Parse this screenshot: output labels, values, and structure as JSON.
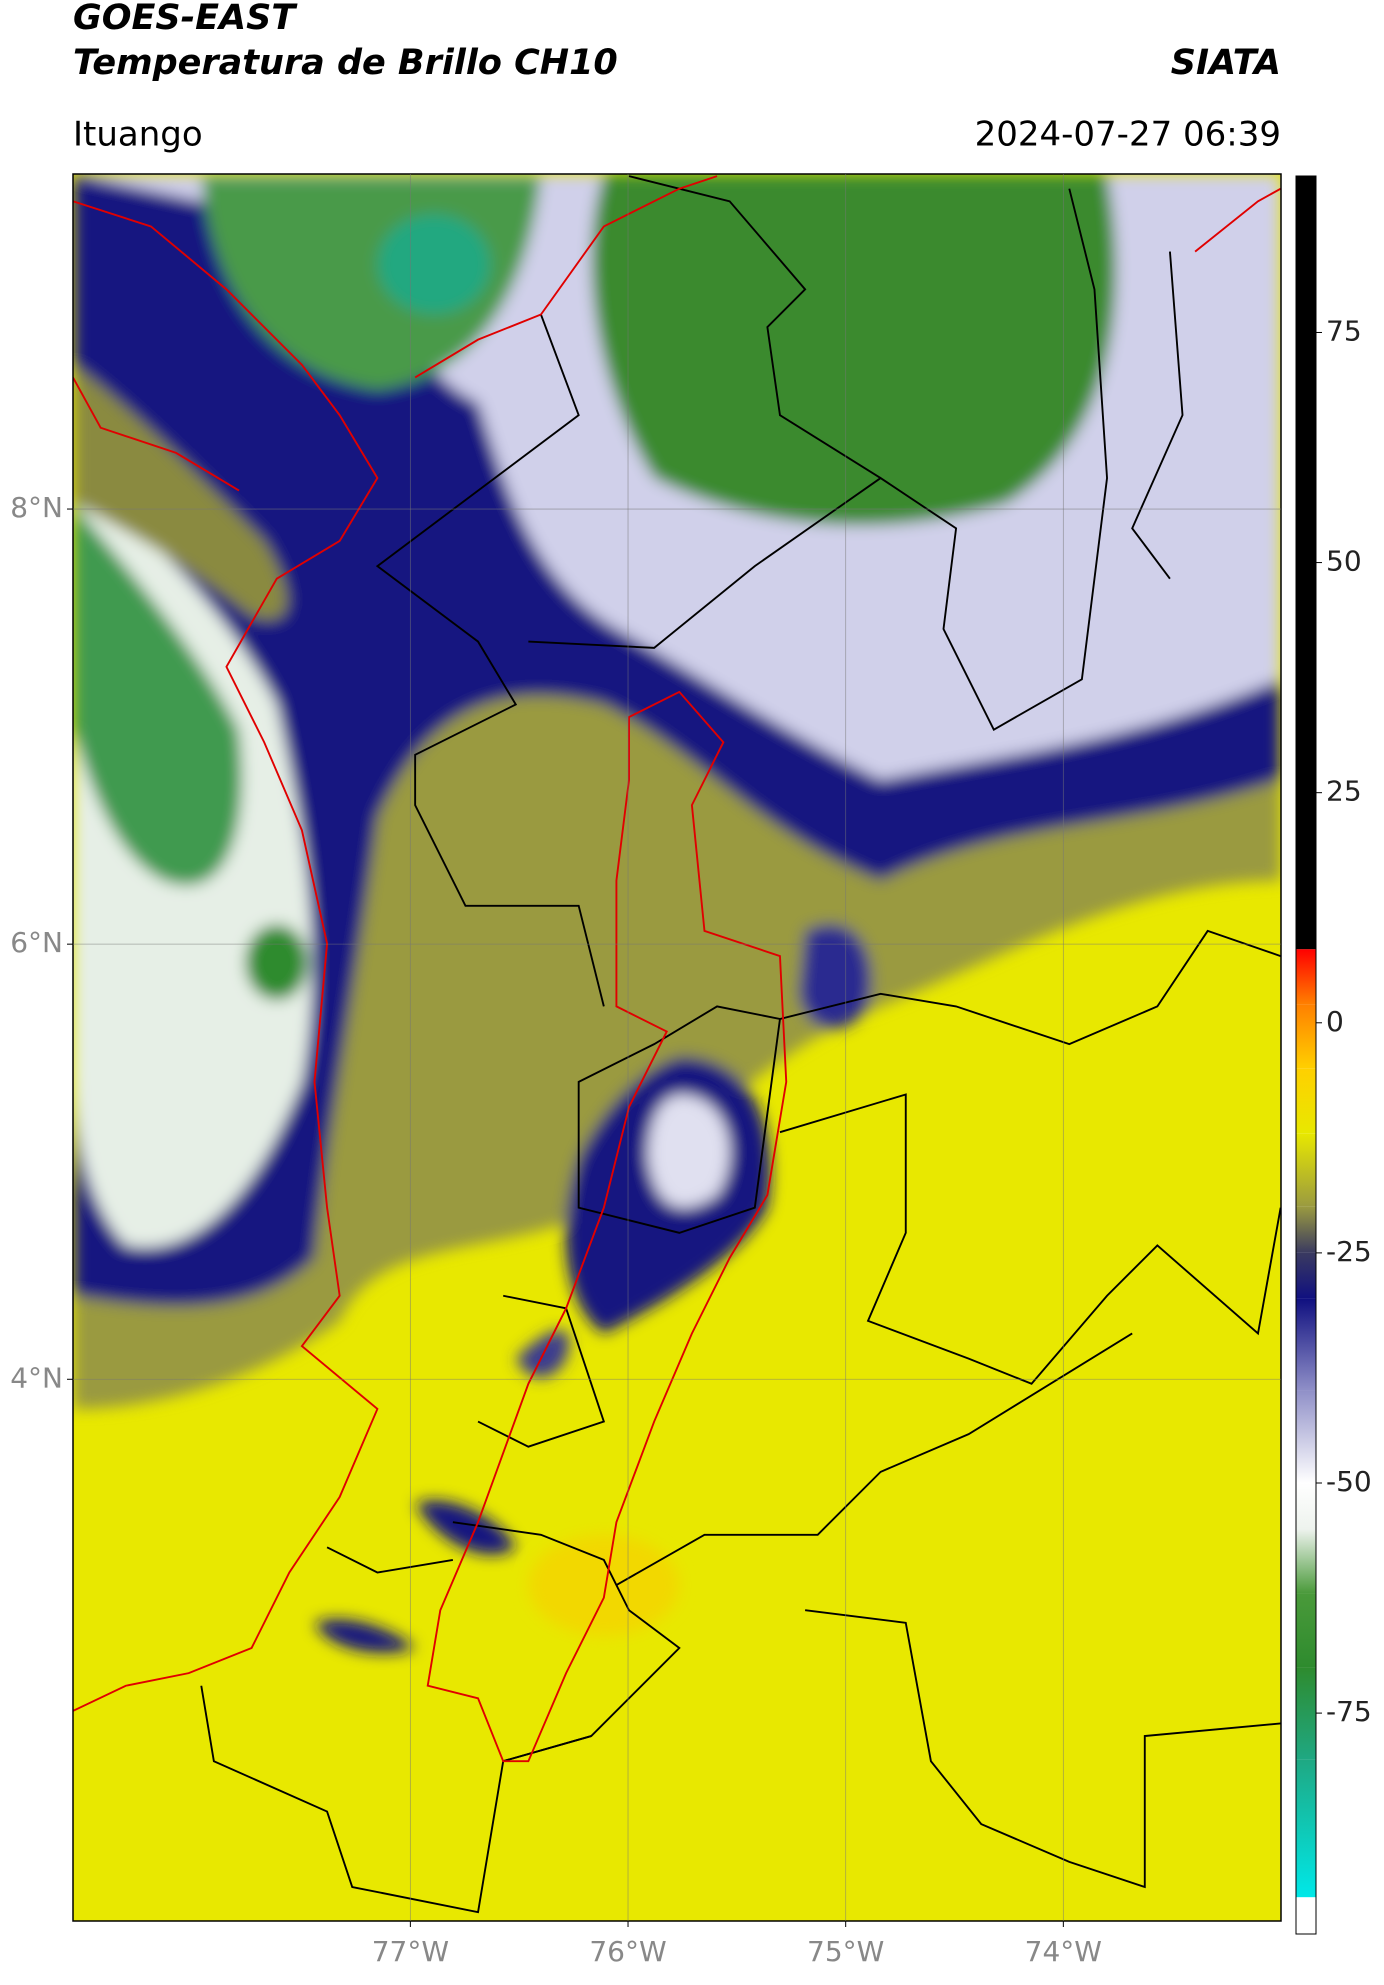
{
  "header": {
    "title": "GOES-EAST",
    "subtitle": "Temperatura de Brillo CH10",
    "brand": "SIATA",
    "location": "Ituango",
    "datetime": "2024-07-27 06:39"
  },
  "map": {
    "xlim": [
      -78.55,
      -73.0
    ],
    "ylim": [
      1.51,
      9.54
    ],
    "xticks": [
      {
        "value": -77,
        "label": "77°W"
      },
      {
        "value": -76,
        "label": "76°W"
      },
      {
        "value": -75,
        "label": "75°W"
      },
      {
        "value": -74,
        "label": "74°W"
      }
    ],
    "yticks": [
      {
        "value": 8,
        "label": "8°N"
      },
      {
        "value": 6,
        "label": "6°N"
      },
      {
        "value": 4,
        "label": "4°N"
      }
    ],
    "grid": true
  },
  "colorbar": {
    "lim": [
      -99,
      92
    ],
    "ticks": [
      75,
      50,
      25,
      0,
      -25,
      -50,
      -75
    ],
    "stops": [
      {
        "value": -99,
        "color": "#ffffff"
      },
      {
        "value": -95,
        "color": "#ffffff"
      },
      {
        "value": -95,
        "color": "#00e8e8"
      },
      {
        "value": -80,
        "color": "#1fa882"
      },
      {
        "value": -70,
        "color": "#2e8b2e"
      },
      {
        "value": -62,
        "color": "#4a9a3a"
      },
      {
        "value": -55,
        "color": "#eef3ee"
      },
      {
        "value": -50,
        "color": "#ffffff"
      },
      {
        "value": -40,
        "color": "#9090c8"
      },
      {
        "value": -30,
        "color": "#101080"
      },
      {
        "value": -25,
        "color": "#3a3a60"
      },
      {
        "value": -20,
        "color": "#9a9a40"
      },
      {
        "value": -12,
        "color": "#e8e800"
      },
      {
        "value": -5,
        "color": "#ffd000"
      },
      {
        "value": 2,
        "color": "#ff8000"
      },
      {
        "value": 8,
        "color": "#ff0000"
      },
      {
        "value": 8,
        "color": "#000000"
      },
      {
        "value": 92,
        "color": "#000000"
      }
    ]
  }
}
